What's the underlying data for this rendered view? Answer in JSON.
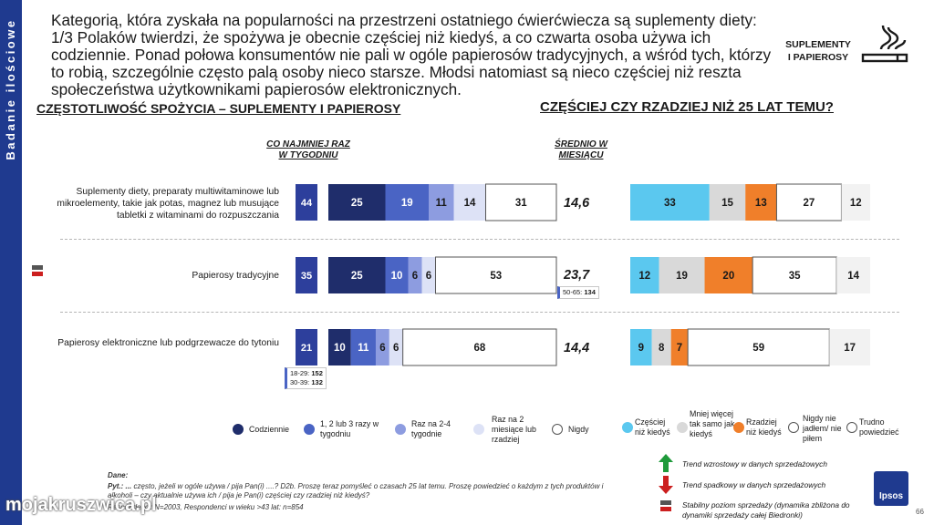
{
  "sidebar": {
    "label": "Badanie ilościowe"
  },
  "intro": {
    "text": "Kategorią, która zyskała na popularności na przestrzeni ostatniego ćwierćwiecza są suplementy diety: 1/3 Polaków twierdzi, że spożywa je obecnie częściej niż kiedyś, a co czwarta osoba używa ich codziennie. Ponad połowa konsumentów nie pali w ogóle papierosów tradycyjnych, a wśród tych, którzy to robią, szczególnie często palą osoby nieco starsze. Młodsi natomiast są nieco częściej niż reszta społeczeństwa użytkownikami papierosów elektronicznych."
  },
  "badge": {
    "line1": "SUPLEMENTY",
    "line2": "I PAPIEROSY",
    "icon": "cigarette-smoke-icon"
  },
  "sections": {
    "left_title": "CZĘSTOTLIWOŚĆ SPOŻYCIA – SUPLEMENTY I PAPIEROSY",
    "right_title": "CZĘŚCIEJ CZY RZADZIEJ NIŻ 25 LAT TEMU?",
    "col_weekly_1": "CO NAJMNIEJ RAZ",
    "col_weekly_2": "W TYGODNIU",
    "col_avg_1": "ŚREDNIO W",
    "col_avg_2": "MIESIĄCU"
  },
  "chart_data": [
    {
      "type": "bar",
      "stacked": true,
      "orientation": "horizontal",
      "title": "CZĘSTOTLIWOŚĆ SPOŻYCIA – SUPLEMENTY I PAPIEROSY",
      "categories": [
        "Suplementy diety, preparaty multiwitaminowe lub mikroelementy, takie jak potas, magnez lub musujące tabletki z witaminami do rozpuszczania",
        "Papierosy tradycyjne",
        "Papierosy elektroniczne lub podgrzewacze do tytoniu"
      ],
      "series": [
        {
          "name": "Codziennie",
          "values": [
            25,
            25,
            10
          ],
          "color": "#1f2d6b"
        },
        {
          "name": "1, 2 lub 3 razy w tygodniu",
          "values": [
            19,
            10,
            11
          ],
          "color": "#4a64c4"
        },
        {
          "name": "Raz na 2-4 tygodnie",
          "values": [
            11,
            6,
            6
          ],
          "color": "#8d9ce0"
        },
        {
          "name": "Raz na 2 miesiące lub rzadziej",
          "values": [
            14,
            6,
            6
          ],
          "color": "#dde2f6"
        },
        {
          "name": "Nigdy",
          "values": [
            31,
            53,
            68
          ],
          "color": "#ffffff"
        }
      ],
      "weekly_at_least": [
        44,
        35,
        21
      ],
      "monthly_average": [
        "14,6",
        "23,7",
        "14,4"
      ],
      "subgroup_notes": [
        [],
        [
          {
            "label": "50-65:",
            "value": "134"
          }
        ],
        [
          {
            "label": "18-29:",
            "value": "152"
          },
          {
            "label": "30-39:",
            "value": "132"
          }
        ]
      ],
      "trend": [
        "",
        "stable",
        ""
      ]
    },
    {
      "type": "bar",
      "stacked": true,
      "orientation": "horizontal",
      "title": "CZĘŚCIEJ CZY RZADZIEJ NIŻ 25 LAT TEMU?",
      "categories": [
        "Suplementy diety, preparaty multiwitaminowe lub mikroelementy, takie jak potas, magnez lub musujące tabletki z witaminami do rozpuszczania",
        "Papierosy tradycyjne",
        "Papierosy elektroniczne lub podgrzewacze do tytoniu"
      ],
      "series": [
        {
          "name": "Częściej niż kiedyś",
          "values": [
            33,
            12,
            9
          ],
          "color": "#5bc8ef"
        },
        {
          "name": "Mniej więcej tak samo jak kiedyś",
          "values": [
            15,
            19,
            8
          ],
          "color": "#d9d9d9"
        },
        {
          "name": "Rzadziej niż kiedyś",
          "values": [
            13,
            20,
            7
          ],
          "color": "#f07f2a"
        },
        {
          "name": "Nigdy nie jadłem/ nie piłem",
          "values": [
            27,
            35,
            59
          ],
          "color": "#ffffff"
        },
        {
          "name": "Trudno powiedzieć",
          "values": [
            12,
            14,
            17
          ],
          "color": "#f2f2f2"
        }
      ]
    }
  ],
  "legend_freq": [
    {
      "label": "Codziennie",
      "color": "#1f2d6b"
    },
    {
      "label": "1, 2 lub 3 razy w tygodniu",
      "color": "#4a64c4"
    },
    {
      "label": "Raz na 2-4 tygodnie",
      "color": "#8d9ce0"
    },
    {
      "label": "Raz na 2 miesiące lub rzadziej",
      "color": "#dde2f6"
    },
    {
      "label": "Nigdy",
      "color": "#ffffff"
    }
  ],
  "legend_trend": [
    {
      "label": "Częściej niż kiedyś",
      "color": "#5bc8ef"
    },
    {
      "label": "Mniej więcej tak samo jak kiedyś",
      "color": "#d9d9d9"
    },
    {
      "label": "Rzadziej niż kiedyś",
      "color": "#f07f2a"
    },
    {
      "label": "Nigdy nie jadłem/ nie piłem",
      "color": "#ffffff"
    },
    {
      "label": "Trudno powiedzieć",
      "color": "#ffffff"
    }
  ],
  "trend_legend": {
    "up": "Trend wzrostowy w danych sprzedażowych",
    "down": "Trend spadkowy w danych sprzedażowych",
    "stable": "Stabilny poziom sprzedaży (dynamika zbliżona do dynamiki sprzedaży całej Biedronki)"
  },
  "notes": {
    "dane": "Dane:",
    "pyt": "Pyt.: ...",
    "pyt_text": "często, jeżeli w ogóle używa / pija Pan(i) ....? D2b. Proszę teraz pomyśleć o czasach 25 lat temu. Proszę powiedzieć o każdym z tych produktów i alkoholi – czy aktualnie używa ich / pija je Pan(i) częściej czy rzadziej niż kiedyś?",
    "base": "N=2003, Respondenci w wieku >43 lat: n=854",
    "base_prefix": "Respondenci:"
  },
  "logo": {
    "text": "Ipsos"
  },
  "watermark": "mojakruszwica.pl",
  "page_number": "66"
}
